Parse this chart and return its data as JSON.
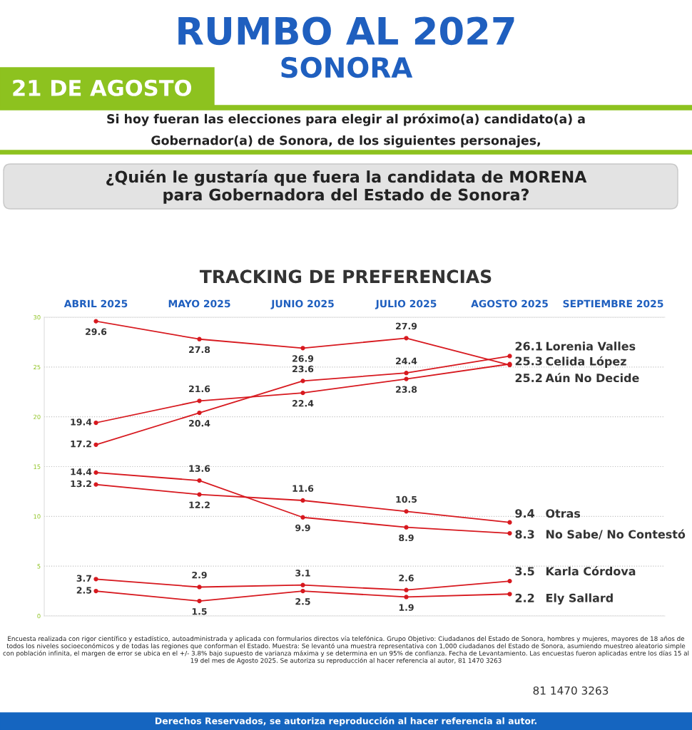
{
  "chart_data": {
    "type": "line",
    "title": "RUMBO AL 2027",
    "subtitle": "SONORA",
    "categories": [
      "ABRIL 2025",
      "MAYO 2025",
      "JUNIO 2025",
      "JULIO 2025",
      "AGOSTO 2025",
      "SEPTIEMBRE 2025"
    ],
    "series": [
      {
        "name": "Aún No Decide",
        "color": "#d7191f",
        "values": [
          29.6,
          27.8,
          26.9,
          27.9,
          25.2,
          null
        ]
      },
      {
        "name": "Lorenia Valles",
        "color": "#d7191f",
        "values": [
          17.2,
          20.4,
          23.6,
          24.4,
          26.1,
          null
        ]
      },
      {
        "name": "Celida López",
        "color": "#d7191f",
        "values": [
          19.4,
          21.6,
          22.4,
          23.8,
          25.3,
          null
        ]
      },
      {
        "name": "No Sabe/ No Contestó",
        "color": "#d7191f",
        "values": [
          14.4,
          13.6,
          9.9,
          8.9,
          8.3,
          null
        ]
      },
      {
        "name": "Otras",
        "color": "#d7191f",
        "values": [
          13.2,
          12.2,
          11.6,
          10.5,
          9.4,
          null
        ]
      },
      {
        "name": "Karla Córdova",
        "color": "#d7191f",
        "values": [
          3.7,
          2.9,
          3.1,
          2.6,
          3.5,
          null
        ]
      },
      {
        "name": "Ely Sallard",
        "color": "#d7191f",
        "values": [
          2.5,
          1.5,
          2.5,
          1.9,
          2.2,
          null
        ]
      }
    ],
    "ylim": [
      0,
      30
    ],
    "yticks": [
      0,
      5,
      10,
      15,
      20,
      25,
      30
    ],
    "grid": "y",
    "legend": false,
    "marker": "circle",
    "line_style": "solid",
    "data_labels": true,
    "annotations": [
      "21 DE AGOSTO",
      "Si hoy fueran las elecciones para elegir al próximo(a) candidato(a) a\nGobernador(a) de Sonora, de los siguientes personajes,",
      "¿Quién le gustaría que fuera la candidata de MORENA\npara Gobernadora del Estado de Sonora?",
      "TRACKING DE PREFERENCIAS",
      "Encuesta realizada con rigor científico y estadístico, autoadministrada y aplicada con formularios directos vía telefónica. Grupo Objetivo: Ciudadanos del Estado de Sonora, hombres y mujeres, mayores de 18 años de todos los niveles socioeconómicos y de todas las regiones que conforman el Estado. Muestra: Se levantó una muestra representativa con 1,000 ciudadanos del Estado de Sonora, asumiendo muestreo aleatorio simple con población infinita, el margen de error se ubica en el +/- 3.8% bajo supuesto de varianza máxima y se determina en un 95% de confianza. Fecha de Levantamiento. Las encuestas fueron aplicadas entre los días 15 al 19 del mes de Agosto 2025. Se autoriza su reproducción al hacer referencia al autor, 81 1470 3263",
      "81 1470 3263",
      "Derechos Reservados, se autoriza reproducción al hacer referencia al autor."
    ]
  }
}
